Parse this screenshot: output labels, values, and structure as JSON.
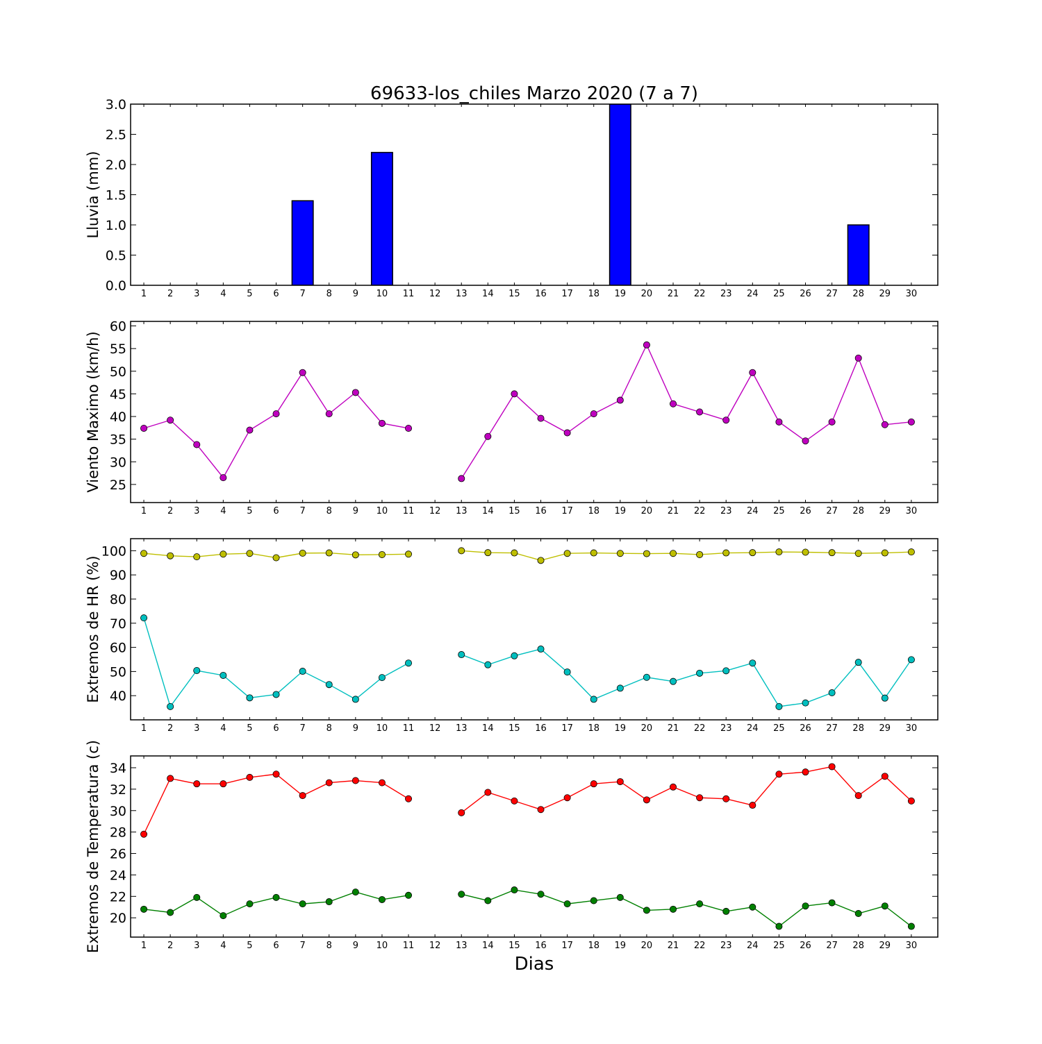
{
  "title": "69633-los_chiles Marzo 2020  (7 a 7)",
  "xlabel": "Dias",
  "colors": {
    "rain": "#0000ff",
    "wind": "#bf00bf",
    "hr_max": "#bfbf00",
    "hr_min": "#00bfbf",
    "temp_max": "#ff0000",
    "temp_min": "#008000"
  },
  "chart_data": [
    {
      "type": "bar",
      "ylabel": "Lluvia (mm)",
      "ylim": [
        0,
        3.0
      ],
      "yticks": [
        "0.0",
        "0.5",
        "1.0",
        "1.5",
        "2.0",
        "2.5",
        "3.0"
      ],
      "categories": [
        "1",
        "2",
        "3",
        "4",
        "5",
        "6",
        "7",
        "8",
        "9",
        "10",
        "11",
        "12",
        "13",
        "14",
        "15",
        "16",
        "17",
        "18",
        "19",
        "20",
        "21",
        "22",
        "23",
        "24",
        "25",
        "26",
        "27",
        "28",
        "29",
        "30"
      ],
      "series": [
        {
          "values": [
            0,
            0,
            0,
            0,
            0,
            0,
            1.4,
            0,
            0,
            2.2,
            0,
            0,
            0,
            0,
            0,
            0,
            0,
            0,
            3.0,
            0,
            0,
            0,
            0,
            0,
            0,
            0,
            0,
            1.0,
            0,
            0
          ]
        }
      ]
    },
    {
      "type": "line",
      "ylabel": "Viento Maximo (km/h)",
      "ylim": [
        21,
        61
      ],
      "yticks": [
        "25",
        "30",
        "35",
        "40",
        "45",
        "50",
        "55",
        "60"
      ],
      "categories": [
        "1",
        "2",
        "3",
        "4",
        "5",
        "6",
        "7",
        "8",
        "9",
        "10",
        "11",
        "12",
        "13",
        "14",
        "15",
        "16",
        "17",
        "18",
        "19",
        "20",
        "21",
        "22",
        "23",
        "24",
        "25",
        "26",
        "27",
        "28",
        "29",
        "30"
      ],
      "series": [
        {
          "values": [
            37.4,
            39.2,
            33.8,
            26.5,
            37.0,
            40.6,
            49.7,
            40.6,
            45.3,
            38.5,
            37.4,
            null,
            26.3,
            35.6,
            45.0,
            39.6,
            36.4,
            40.6,
            43.6,
            55.8,
            42.8,
            41.0,
            39.2,
            49.7,
            38.8,
            34.6,
            38.8,
            52.9,
            38.2,
            38.8
          ]
        }
      ]
    },
    {
      "type": "line",
      "ylabel": "Extremos de HR (%)",
      "ylim": [
        30,
        105
      ],
      "yticks": [
        "40",
        "50",
        "60",
        "70",
        "80",
        "90",
        "100"
      ],
      "categories": [
        "1",
        "2",
        "3",
        "4",
        "5",
        "6",
        "7",
        "8",
        "9",
        "10",
        "11",
        "12",
        "13",
        "14",
        "15",
        "16",
        "17",
        "18",
        "19",
        "20",
        "21",
        "22",
        "23",
        "24",
        "25",
        "26",
        "27",
        "28",
        "29",
        "30"
      ],
      "series": [
        {
          "values": [
            98.9,
            97.9,
            97.5,
            98.6,
            98.9,
            97.1,
            99.0,
            99.1,
            98.3,
            98.4,
            98.6,
            null,
            100.0,
            99.2,
            99.1,
            96.0,
            98.9,
            99.1,
            98.9,
            98.8,
            98.9,
            98.4,
            99.1,
            99.2,
            99.5,
            99.4,
            99.2,
            98.9,
            99.1,
            99.5
          ]
        },
        {
          "values": [
            72.2,
            35.5,
            50.4,
            48.4,
            39.1,
            40.5,
            50.1,
            44.6,
            38.5,
            47.5,
            53.5,
            null,
            57.0,
            52.8,
            56.5,
            59.3,
            49.8,
            38.5,
            43.1,
            47.6,
            45.9,
            49.3,
            50.3,
            53.5,
            35.5,
            37.0,
            41.2,
            53.8,
            39.0,
            54.9
          ]
        }
      ]
    },
    {
      "type": "line",
      "ylabel": "Extremos de Temperatura (c)",
      "ylim": [
        18.2,
        35.1
      ],
      "yticks": [
        "20",
        "22",
        "24",
        "26",
        "28",
        "30",
        "32",
        "34"
      ],
      "categories": [
        "1",
        "2",
        "3",
        "4",
        "5",
        "6",
        "7",
        "8",
        "9",
        "10",
        "11",
        "12",
        "13",
        "14",
        "15",
        "16",
        "17",
        "18",
        "19",
        "20",
        "21",
        "22",
        "23",
        "24",
        "25",
        "26",
        "27",
        "28",
        "29",
        "30"
      ],
      "series": [
        {
          "values": [
            27.8,
            33.0,
            32.5,
            32.5,
            33.1,
            33.4,
            31.4,
            32.6,
            32.8,
            32.6,
            31.1,
            null,
            29.8,
            31.7,
            30.9,
            30.1,
            31.2,
            32.5,
            32.7,
            31.0,
            32.2,
            31.2,
            31.1,
            30.5,
            33.4,
            33.6,
            34.1,
            31.4,
            33.2,
            30.9
          ]
        },
        {
          "values": [
            20.8,
            20.5,
            21.9,
            20.2,
            21.3,
            21.9,
            21.3,
            21.5,
            22.4,
            21.7,
            22.1,
            null,
            22.2,
            21.6,
            22.6,
            22.2,
            21.3,
            21.6,
            21.9,
            20.7,
            20.8,
            21.3,
            20.6,
            21.0,
            19.2,
            21.1,
            21.4,
            20.4,
            21.1,
            19.2
          ]
        }
      ]
    }
  ]
}
